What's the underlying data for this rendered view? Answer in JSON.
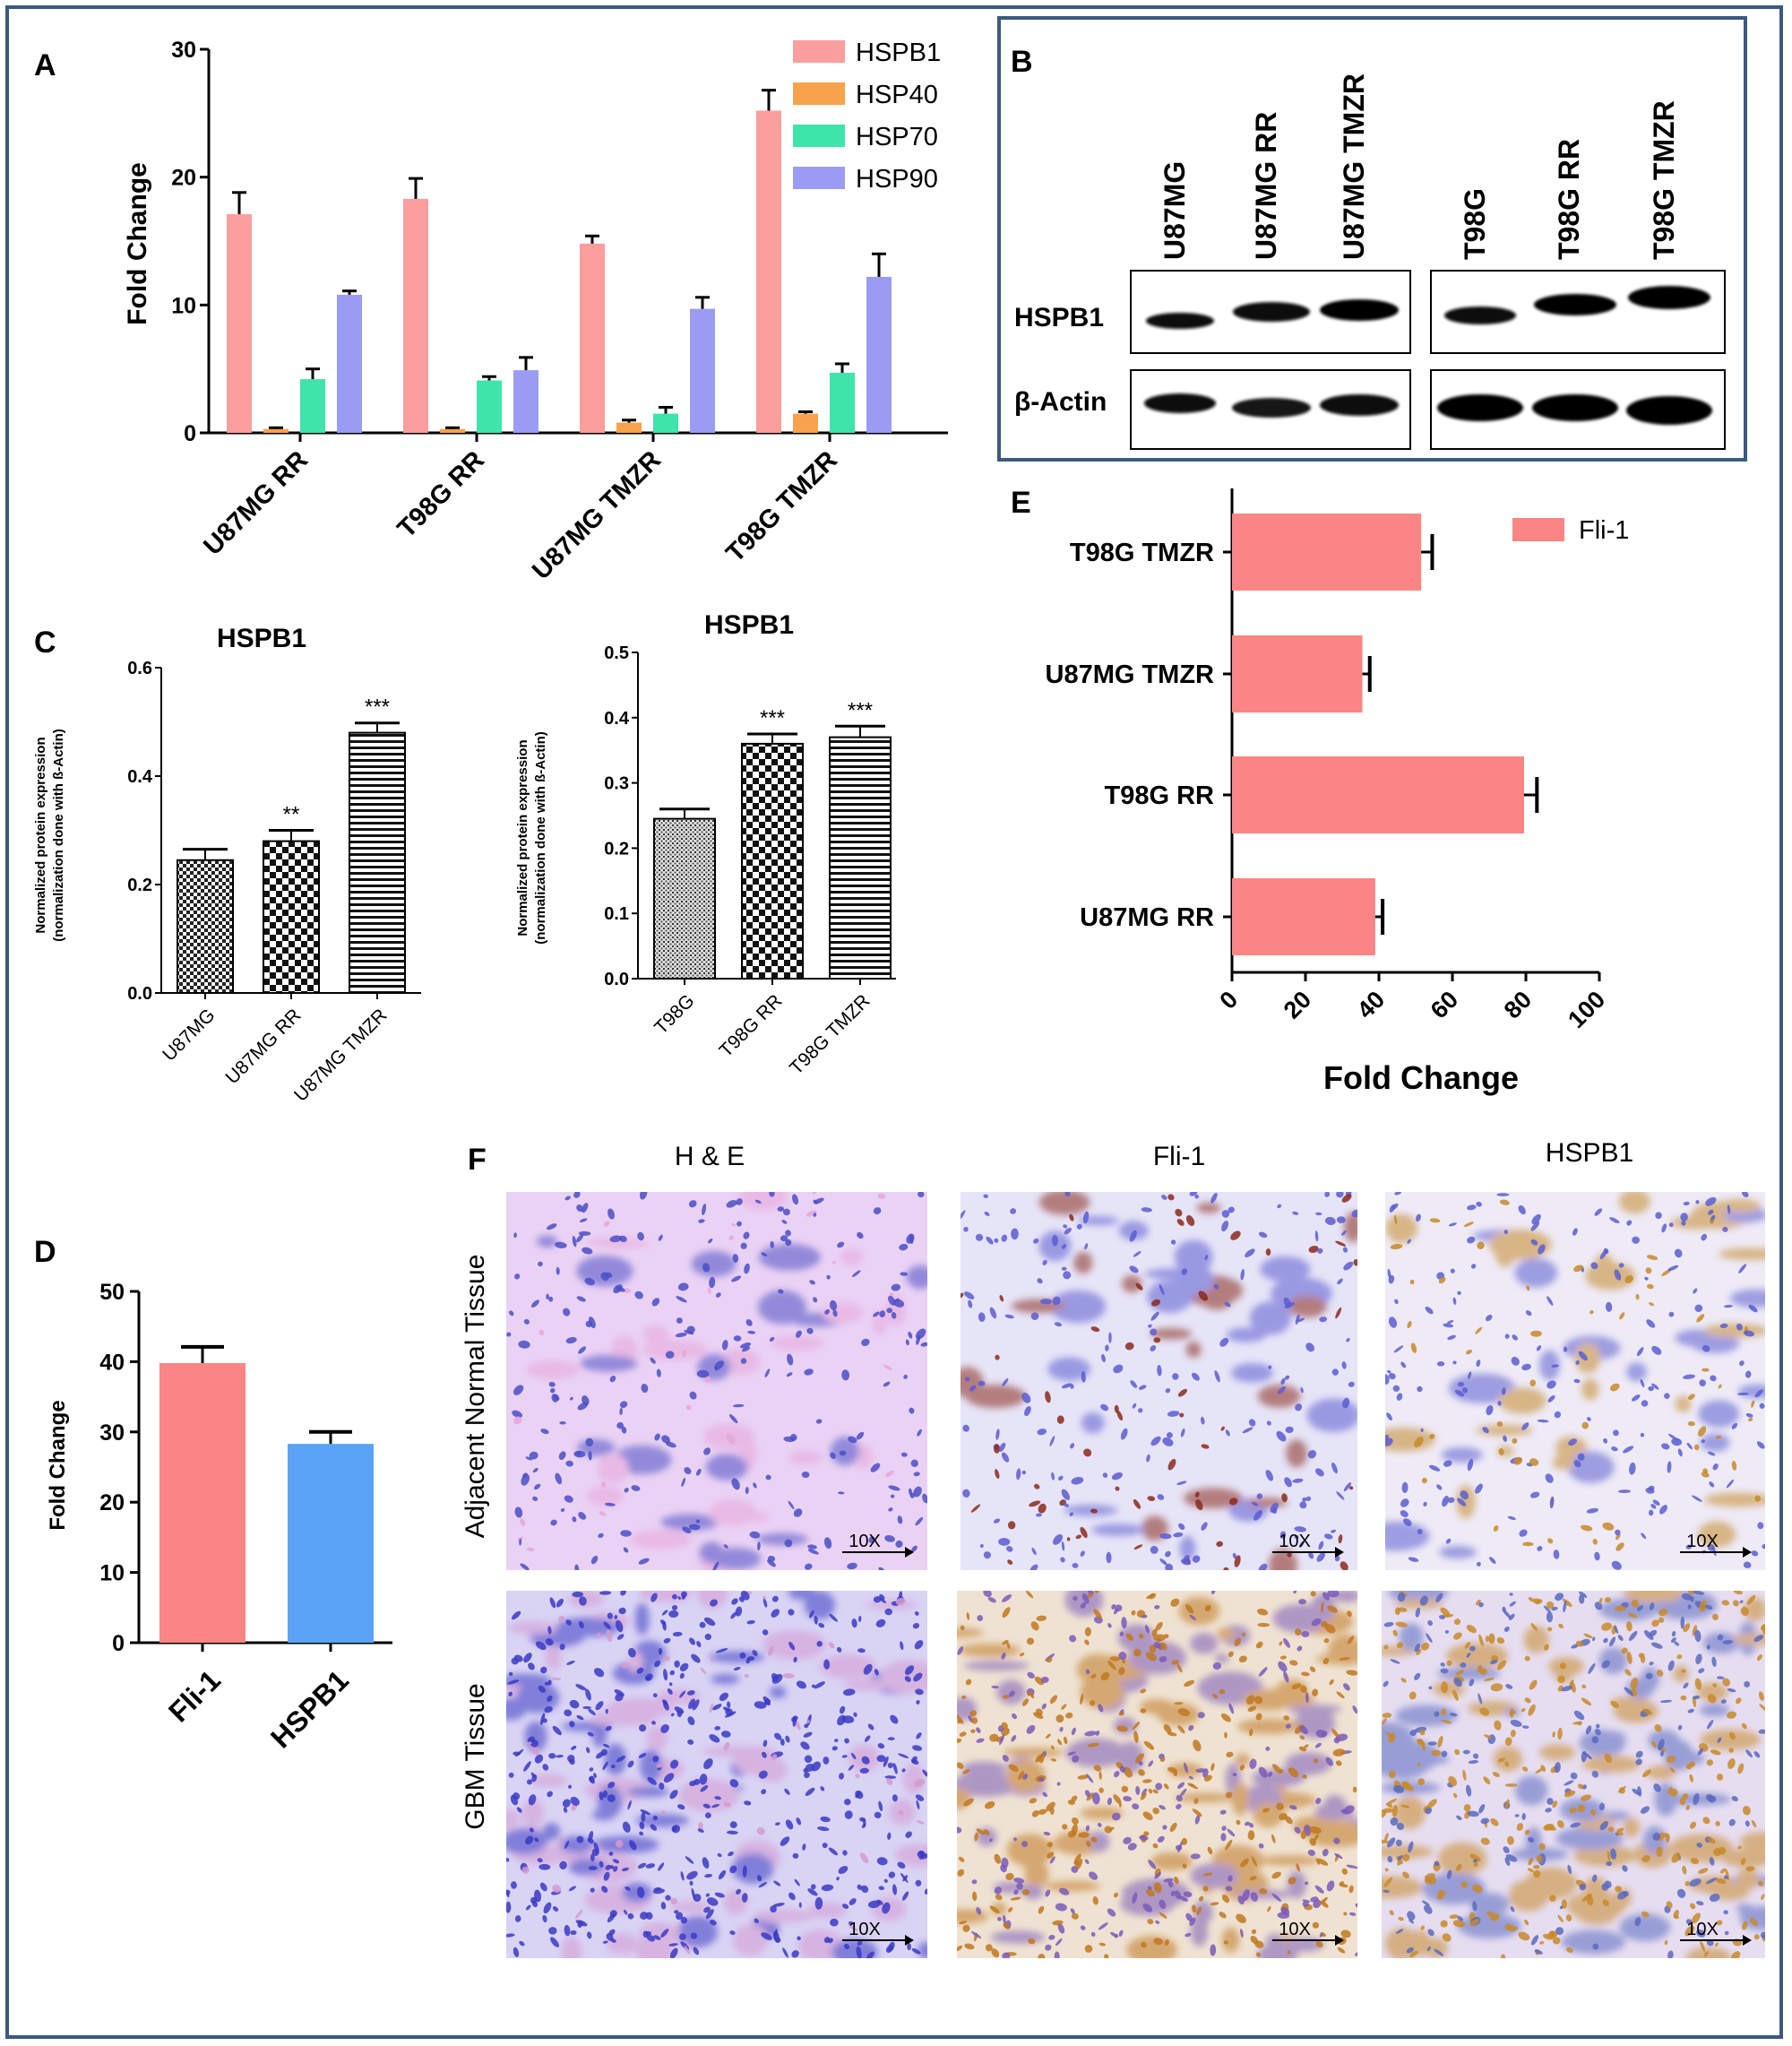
{
  "colors": {
    "hspb1": "#fb9e9e",
    "hsp40": "#f7a24c",
    "hsp70": "#3fe4ab",
    "hsp90": "#9a9cf3",
    "fli1": "#fb8585",
    "hspb1_blue": "#5aa3f7",
    "frame": "#3a5a80",
    "arrow": "#000000"
  },
  "panels": {
    "A": {
      "letter": "A"
    },
    "B": {
      "letter": "B"
    },
    "C": {
      "letter": "C"
    },
    "D": {
      "letter": "D"
    },
    "E": {
      "letter": "E"
    },
    "F": {
      "letter": "F"
    }
  },
  "blot": {
    "lanes_left": [
      "U87MG",
      "U87MG RR",
      "U87MG TMZR"
    ],
    "lanes_right": [
      "T98G",
      "T98G RR",
      "T98G TMZR"
    ],
    "row_labels": [
      "HSPB1",
      "β-Actin"
    ]
  },
  "ihc": {
    "col_titles": [
      "H & E",
      "Fli-1",
      "HSPB1"
    ],
    "row_titles": [
      "Adjacent Normal Tissue",
      "GBM Tissue"
    ],
    "scale_label": "10X",
    "tiles": [
      {
        "name": "he-normal",
        "base": "#ead2f4",
        "dot": "#4b4fc6",
        "accent": "#e6a6d8"
      },
      {
        "name": "fli1-normal",
        "base": "#e6e4f7",
        "dot": "#5c5cd2",
        "accent": "#8a2a1c"
      },
      {
        "name": "hspb1-normal",
        "base": "#eeeaf6",
        "dot": "#5b5ed0",
        "accent": "#c58a2a"
      },
      {
        "name": "he-gbm",
        "base": "#d9d3f4",
        "dot": "#3a3ac4",
        "accent": "#d49ad0"
      },
      {
        "name": "fli1-gbm",
        "base": "#efe2d2",
        "dot": "#7a5ab8",
        "accent": "#c07820"
      },
      {
        "name": "hspb1-gbm",
        "base": "#e6ddf0",
        "dot": "#5a6ac0",
        "accent": "#c88a2a"
      }
    ]
  },
  "chart_data": [
    {
      "panel": "A",
      "type": "bar",
      "categories": [
        "U87MG RR",
        "T98G RR",
        "U87MG TMZR",
        "T98G TMZR"
      ],
      "series": [
        {
          "name": "HSPB1",
          "values": [
            17.1,
            18.3,
            14.8,
            25.2
          ],
          "errors": [
            1.7,
            1.6,
            0.6,
            1.6
          ]
        },
        {
          "name": "HSP40",
          "values": [
            0.3,
            0.3,
            0.8,
            1.5
          ],
          "errors": [
            0.1,
            0.1,
            0.2,
            0.15
          ]
        },
        {
          "name": "HSP70",
          "values": [
            4.2,
            4.1,
            1.5,
            4.7
          ],
          "errors": [
            0.8,
            0.3,
            0.5,
            0.7
          ]
        },
        {
          "name": "HSP90",
          "values": [
            10.8,
            4.9,
            9.7,
            12.2
          ],
          "errors": [
            0.3,
            1.0,
            0.9,
            1.8
          ]
        }
      ],
      "ylabel": "Fold  Change",
      "ylim": [
        0,
        30
      ],
      "yticks": [
        0,
        10,
        20,
        30
      ],
      "legend": "top-right"
    },
    {
      "panel": "C-left",
      "type": "bar",
      "title": "HSPB1",
      "categories": [
        "U87MG",
        "U87MG RR",
        "U87MG TMZR"
      ],
      "values": [
        0.245,
        0.28,
        0.48
      ],
      "errors": [
        0.02,
        0.02,
        0.018
      ],
      "annotations": [
        "",
        "**",
        "***"
      ],
      "ylabel": "Normalized protein expression",
      "ylabel2": "(normalization done with ß-Actin)",
      "ylim": [
        0,
        0.6
      ],
      "yticks": [
        "0.0",
        "0.2",
        "0.4",
        "0.6"
      ]
    },
    {
      "panel": "C-right",
      "type": "bar",
      "title": "HSPB1",
      "categories": [
        "T98G",
        "T98G RR",
        "T98G TMZR"
      ],
      "values": [
        0.245,
        0.36,
        0.37
      ],
      "errors": [
        0.015,
        0.015,
        0.017
      ],
      "annotations": [
        "",
        "***",
        "***"
      ],
      "ylabel": "Normalized protein expression",
      "ylabel2": "(normalization done with ß-Actin)",
      "ylim": [
        0,
        0.5
      ],
      "yticks": [
        "0.0",
        "0.1",
        "0.2",
        "0.3",
        "0.4",
        "0.5"
      ]
    },
    {
      "panel": "D",
      "type": "bar",
      "categories": [
        "Fli-1",
        "HSPB1"
      ],
      "values": [
        39.8,
        28.3
      ],
      "errors": [
        2.3,
        1.7
      ],
      "ylabel": "Fold  Change",
      "ylim": [
        0,
        50
      ],
      "yticks": [
        0,
        10,
        20,
        30,
        40,
        50
      ]
    },
    {
      "panel": "E",
      "type": "bar",
      "orientation": "horizontal",
      "categories": [
        "T98G TMZR",
        "U87MG TMZR",
        "T98G RR",
        "U87MG RR"
      ],
      "series": [
        {
          "name": "Fli-1",
          "values": [
            51.5,
            35.5,
            79.5,
            39
          ]
        }
      ],
      "errors": [
        3,
        2,
        3.5,
        2
      ],
      "xlabel": "Fold Change",
      "xlim": [
        0,
        100
      ],
      "xticks": [
        0,
        20,
        40,
        60,
        80,
        100
      ],
      "legend": "top-right"
    }
  ]
}
